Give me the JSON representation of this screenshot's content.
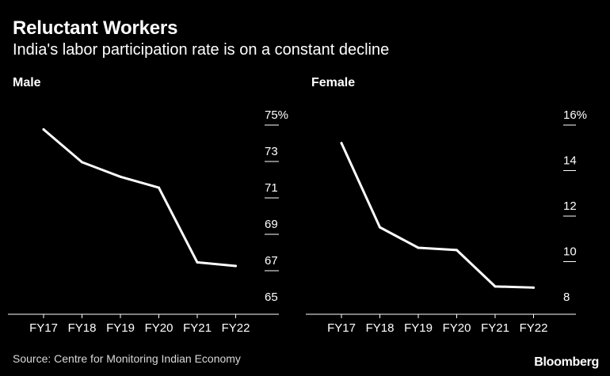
{
  "title": "Reluctant Workers",
  "subtitle": "India's labor participation rate is on a constant decline",
  "source": "Source: Centre for Monitoring Indian Economy",
  "brand": "Bloomberg",
  "colors": {
    "background": "#000000",
    "line": "#ffffff",
    "axis": "#ffffff"
  },
  "chart_data": [
    {
      "type": "line",
      "title": "Male",
      "categories": [
        "FY17",
        "FY18",
        "FY19",
        "FY20",
        "FY21",
        "FY22"
      ],
      "values": [
        74.5,
        72.7,
        71.9,
        71.3,
        67.2,
        67.0
      ],
      "unit": "%",
      "ylim": [
        65,
        75
      ],
      "yticks": [
        65,
        67,
        69,
        71,
        73,
        75
      ],
      "ytick_labels": [
        "65",
        "67",
        "69",
        "71",
        "73",
        "75%"
      ],
      "y_axis_position": "right",
      "grid": false
    },
    {
      "type": "line",
      "title": "Female",
      "categories": [
        "FY17",
        "FY18",
        "FY19",
        "FY20",
        "FY21",
        "FY22"
      ],
      "values": [
        15.0,
        11.3,
        10.4,
        10.3,
        8.7,
        8.65
      ],
      "unit": "%",
      "ylim": [
        8,
        16
      ],
      "yticks": [
        8,
        10,
        12,
        14,
        16
      ],
      "ytick_labels": [
        "8",
        "10",
        "12",
        "14",
        "16%"
      ],
      "y_axis_position": "right",
      "grid": false
    }
  ]
}
